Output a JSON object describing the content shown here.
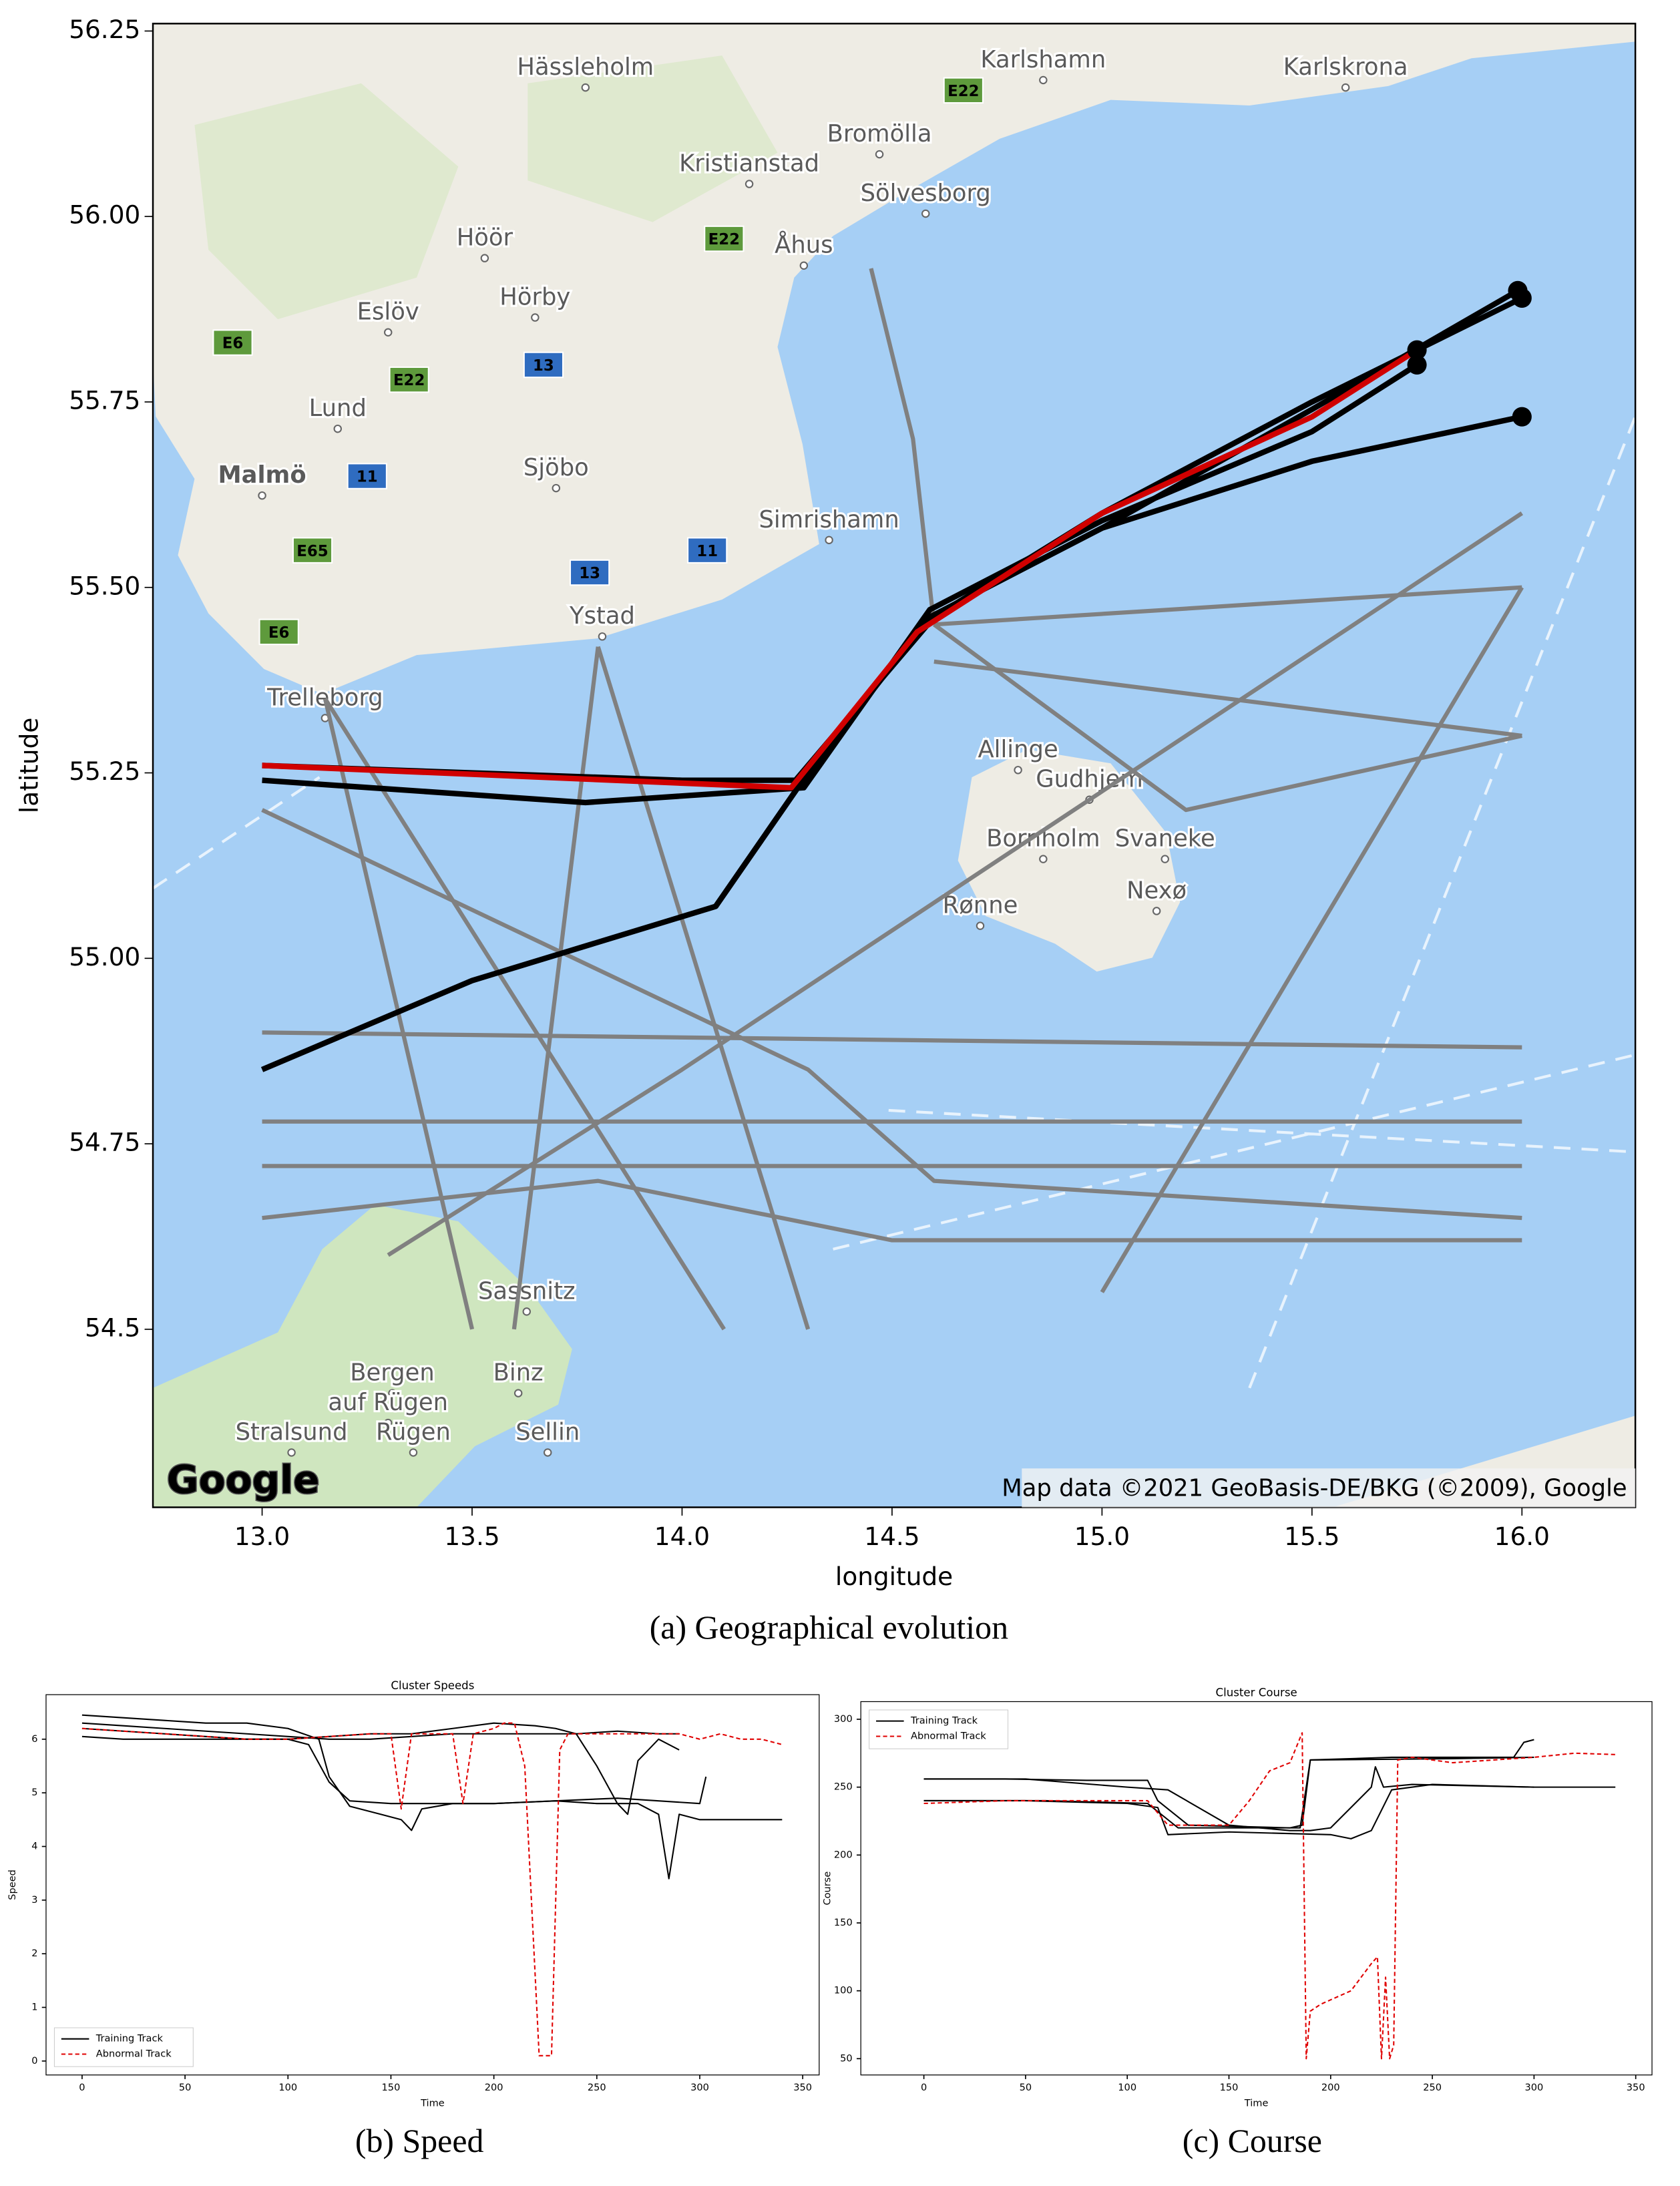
{
  "chart_data": [
    {
      "type": "map",
      "xlabel": "longitude",
      "ylabel": "latitude",
      "caption": "(a) Geographical evolution",
      "logo": "Google",
      "attribution": "Map data ©2021 GeoBasis-DE/BKG (©2009), Google",
      "xlim": [
        12.74,
        16.27
      ],
      "ylim": [
        54.26,
        56.26
      ],
      "xticks": [
        {
          "value": 13,
          "label": "13.0"
        },
        13.5,
        {
          "value": 14,
          "label": "14.0"
        },
        14.5,
        {
          "value": 15,
          "label": "15.0"
        },
        15.5,
        {
          "value": 16,
          "label": "16.0"
        }
      ],
      "yticks": [
        54.5,
        54.75,
        {
          "value": 55,
          "label": "55.00"
        },
        55.25,
        {
          "value": 55.5,
          "label": "55.50"
        },
        55.75,
        {
          "value": 56,
          "label": "56.00"
        },
        56.25
      ],
      "places": [
        {
          "name": "Hässleholm",
          "lon": 13.77,
          "lat": 56.2
        },
        {
          "name": "Karlshamn",
          "lon": 14.86,
          "lat": 56.21
        },
        {
          "name": "Karlskrona",
          "lon": 15.58,
          "lat": 56.2
        },
        {
          "name": "Bromölla",
          "lon": 14.47,
          "lat": 56.11
        },
        {
          "name": "Kristianstad",
          "lon": 14.16,
          "lat": 56.07
        },
        {
          "name": "Sölvesborg",
          "lon": 14.58,
          "lat": 56.03
        },
        {
          "name": "Höör",
          "lon": 13.53,
          "lat": 55.97
        },
        {
          "name": "Åhus",
          "lon": 14.29,
          "lat": 55.96
        },
        {
          "name": "Eslöv",
          "lon": 13.3,
          "lat": 55.87
        },
        {
          "name": "Hörby",
          "lon": 13.65,
          "lat": 55.89
        },
        {
          "name": "Lund",
          "lon": 13.18,
          "lat": 55.74
        },
        {
          "name": "Malmö",
          "lon": 13.0,
          "lat": 55.65
        },
        {
          "name": "Sjöbo",
          "lon": 13.7,
          "lat": 55.66
        },
        {
          "name": "Simrishamn",
          "lon": 14.35,
          "lat": 55.59
        },
        {
          "name": "Ystad",
          "lon": 13.81,
          "lat": 55.46
        },
        {
          "name": "Trelleborg",
          "lon": 13.15,
          "lat": 55.35
        },
        {
          "name": "Allinge",
          "lon": 14.8,
          "lat": 55.28
        },
        {
          "name": "Gudhjem",
          "lon": 14.97,
          "lat": 55.24
        },
        {
          "name": "Bornholm",
          "lon": 14.86,
          "lat": 55.16
        },
        {
          "name": "Svaneke",
          "lon": 15.15,
          "lat": 55.16
        },
        {
          "name": "Nexø",
          "lon": 15.13,
          "lat": 55.09
        },
        {
          "name": "Rønne",
          "lon": 14.71,
          "lat": 55.07
        },
        {
          "name": "Sassnitz",
          "lon": 13.63,
          "lat": 54.55
        },
        {
          "name": "Bergen",
          "lon": 13.31,
          "lat": 54.44
        },
        {
          "name": "auf Rügen",
          "lon": 13.3,
          "lat": 54.4
        },
        {
          "name": "Binz",
          "lon": 13.61,
          "lat": 54.44
        },
        {
          "name": "Sellin",
          "lon": 13.68,
          "lat": 54.36
        },
        {
          "name": "Stralsund",
          "lon": 13.07,
          "lat": 54.36
        },
        {
          "name": "Rügen",
          "lon": 13.36,
          "lat": 54.36
        }
      ],
      "roads": [
        {
          "label": "E22",
          "lon": 14.67,
          "lat": 56.17,
          "color": "#5e9a3c"
        },
        {
          "label": "E22",
          "lon": 14.1,
          "lat": 55.97,
          "color": "#5e9a3c"
        },
        {
          "label": "E22",
          "lon": 13.35,
          "lat": 55.78,
          "color": "#5e9a3c"
        },
        {
          "label": "E6",
          "lon": 12.93,
          "lat": 55.83,
          "color": "#5e9a3c"
        },
        {
          "label": "E65",
          "lon": 13.12,
          "lat": 55.55,
          "color": "#5e9a3c"
        },
        {
          "label": "E6",
          "lon": 13.04,
          "lat": 55.44,
          "color": "#5e9a3c"
        },
        {
          "label": "13",
          "lon": 13.67,
          "lat": 55.8,
          "color": "#2f6cc0"
        },
        {
          "label": "13",
          "lon": 13.78,
          "lat": 55.52,
          "color": "#2f6cc0"
        },
        {
          "label": "11",
          "lon": 13.25,
          "lat": 55.65,
          "color": "#2f6cc0"
        },
        {
          "label": "11",
          "lon": 14.06,
          "lat": 55.55,
          "color": "#2f6cc0"
        }
      ],
      "series": [
        {
          "color": "#808080",
          "x": [
            13.0,
            16.0
          ],
          "values": [
            54.78,
            54.78
          ]
        },
        {
          "color": "#808080",
          "x": [
            13.0,
            16.0
          ],
          "values": [
            54.72,
            54.72
          ]
        },
        {
          "color": "#808080",
          "x": [
            13.0,
            16.0
          ],
          "values": [
            54.9,
            54.88
          ]
        },
        {
          "color": "#808080",
          "x": [
            14.6,
            16.0
          ],
          "values": [
            55.45,
            55.5
          ]
        },
        {
          "color": "#808080",
          "x": [
            14.6,
            16.0
          ],
          "values": [
            55.4,
            55.3
          ]
        },
        {
          "color": "#808080",
          "x": [
            13.0,
            13.8,
            14.5,
            16.0
          ],
          "values": [
            54.65,
            54.7,
            54.62,
            54.62
          ]
        },
        {
          "color": "#808080",
          "x": [
            13.15,
            14.1
          ],
          "values": [
            55.35,
            54.5
          ]
        },
        {
          "color": "#808080",
          "x": [
            13.15,
            13.5
          ],
          "values": [
            55.35,
            54.5
          ]
        },
        {
          "color": "#808080",
          "x": [
            13.8,
            13.6
          ],
          "values": [
            55.42,
            54.5
          ]
        },
        {
          "color": "#808080",
          "x": [
            13.8,
            14.3
          ],
          "values": [
            55.42,
            54.5
          ]
        },
        {
          "color": "#808080",
          "x": [
            13.0,
            14.3,
            14.6,
            16.0
          ],
          "values": [
            55.2,
            54.85,
            54.7,
            54.65
          ]
        },
        {
          "color": "#808080",
          "x": [
            15.0,
            16.0
          ],
          "values": [
            54.55,
            55.5
          ]
        },
        {
          "color": "#808080",
          "x": [
            14.45,
            14.55,
            14.6
          ],
          "values": [
            55.93,
            55.7,
            55.45
          ]
        },
        {
          "color": "#808080",
          "x": [
            13.3,
            14.0,
            16.0
          ],
          "values": [
            54.6,
            54.85,
            55.6
          ]
        },
        {
          "color": "#808080",
          "x": [
            14.6,
            15.2,
            16.0
          ],
          "values": [
            55.45,
            55.2,
            55.3
          ]
        },
        {
          "color": "#000000",
          "x": [
            13.0,
            13.5,
            14.08,
            14.3,
            14.59,
            15.0,
            15.5,
            15.99
          ],
          "values": [
            54.85,
            54.97,
            55.07,
            55.25,
            55.46,
            55.58,
            55.74,
            55.9
          ],
          "end_marker": true
        },
        {
          "color": "#000000",
          "x": [
            13.0,
            13.77,
            14.29,
            14.59,
            15.0,
            15.5,
            15.75
          ],
          "values": [
            55.24,
            55.21,
            55.23,
            55.47,
            55.59,
            55.71,
            55.8
          ],
          "end_marker": true
        },
        {
          "color": "#000000",
          "x": [
            14.08,
            14.3,
            14.59,
            15.0,
            15.5,
            16.0
          ],
          "values": [
            55.07,
            55.25,
            55.46,
            55.58,
            55.67,
            55.73
          ],
          "end_marker": true
        },
        {
          "color": "#000000",
          "x": [
            13.0,
            14.0,
            14.27,
            14.6,
            15.0,
            15.5,
            16.0
          ],
          "values": [
            55.26,
            55.24,
            55.24,
            55.46,
            55.6,
            55.75,
            55.89
          ],
          "end_marker": true
        },
        {
          "color": "#d00000",
          "x": [
            13.0,
            14.26,
            14.56,
            15.0,
            15.5,
            15.75
          ],
          "values": [
            55.26,
            55.23,
            55.44,
            55.6,
            55.73,
            55.82
          ],
          "end_marker": true
        }
      ]
    },
    {
      "type": "line",
      "title": "Cluster Speeds",
      "xlabel": "Time",
      "ylabel": "Speed",
      "caption": "(b) Speed",
      "xlim": [
        -17.5,
        358
      ],
      "ylim": [
        -0.26,
        6.83
      ],
      "xticks": [
        0,
        50,
        100,
        150,
        200,
        250,
        300,
        350
      ],
      "yticks": [
        0,
        1,
        2,
        3,
        4,
        5,
        6
      ],
      "legend": "lower left",
      "series": [
        {
          "name": "Training Track",
          "color": "#000000",
          "linestyle": "solid",
          "x": [
            0,
            20,
            40,
            60,
            80,
            100,
            120,
            140,
            160,
            180,
            200,
            220,
            240,
            260,
            280,
            290
          ],
          "values": [
            6.3,
            6.25,
            6.2,
            6.15,
            6.1,
            6.05,
            6.0,
            6.0,
            6.05,
            6.1,
            6.1,
            6.1,
            6.1,
            6.15,
            6.1,
            6.1
          ]
        },
        {
          "color": "#000000",
          "linestyle": "solid",
          "x": [
            0,
            20,
            40,
            60,
            80,
            100,
            110,
            120,
            130,
            150,
            170,
            200,
            230,
            250,
            270,
            280,
            285,
            290,
            300,
            320,
            340
          ],
          "values": [
            6.2,
            6.15,
            6.1,
            6.05,
            6.0,
            6.0,
            5.9,
            5.2,
            4.85,
            4.8,
            4.8,
            4.8,
            4.85,
            4.8,
            4.8,
            4.6,
            3.4,
            4.6,
            4.5,
            4.5,
            4.5
          ]
        },
        {
          "color": "#000000",
          "linestyle": "solid",
          "x": [
            0,
            20,
            40,
            60,
            80,
            100,
            115,
            120,
            130,
            145,
            155,
            160,
            165,
            180,
            200,
            230,
            260,
            300,
            303
          ],
          "values": [
            6.45,
            6.4,
            6.35,
            6.3,
            6.3,
            6.2,
            6.0,
            5.3,
            4.75,
            4.6,
            4.5,
            4.3,
            4.7,
            4.8,
            4.8,
            4.85,
            4.9,
            4.8,
            5.3
          ]
        },
        {
          "color": "#000000",
          "linestyle": "solid",
          "x": [
            0,
            20,
            40,
            60,
            80,
            100,
            120,
            140,
            160,
            180,
            200,
            220,
            230,
            240,
            250,
            260,
            265,
            270,
            280,
            290
          ],
          "values": [
            6.05,
            6.0,
            6.0,
            6.0,
            6.0,
            6.0,
            6.05,
            6.1,
            6.1,
            6.2,
            6.3,
            6.25,
            6.2,
            6.1,
            5.5,
            4.8,
            4.6,
            5.6,
            6.0,
            5.8
          ]
        },
        {
          "name": "Abnormal Track",
          "color": "#e00000",
          "linestyle": "dashed",
          "x": [
            0,
            20,
            40,
            60,
            80,
            100,
            120,
            140,
            150,
            155,
            160,
            170,
            180,
            185,
            190,
            200,
            205,
            210,
            215,
            222,
            228,
            232,
            236,
            250,
            270,
            290,
            300,
            310,
            320,
            330,
            340
          ],
          "values": [
            6.2,
            6.15,
            6.1,
            6.05,
            6.0,
            6.0,
            6.05,
            6.1,
            6.1,
            4.7,
            6.1,
            6.1,
            6.1,
            4.8,
            6.1,
            6.2,
            6.3,
            6.3,
            5.5,
            0.1,
            0.1,
            5.8,
            6.1,
            6.1,
            6.1,
            6.1,
            6.0,
            6.1,
            6.0,
            6.0,
            5.9
          ]
        }
      ]
    },
    {
      "type": "line",
      "title": "Cluster Course",
      "xlabel": "Time",
      "ylabel": "Course",
      "caption": "(c) Course",
      "xlim": [
        -31,
        358
      ],
      "ylim": [
        38,
        313
      ],
      "xticks": [
        0,
        50,
        100,
        150,
        200,
        250,
        300,
        350
      ],
      "yticks": [
        50,
        100,
        150,
        200,
        250,
        300
      ],
      "legend": "upper left",
      "series": [
        {
          "name": "Training Track",
          "color": "#000000",
          "linestyle": "solid",
          "x": [
            0,
            40,
            80,
            110,
            115,
            130,
            180,
            186,
            190,
            230,
            260,
            290,
            295,
            300
          ],
          "values": [
            256,
            256,
            255,
            255,
            240,
            222,
            220,
            222,
            270,
            272,
            272,
            272,
            283,
            285
          ]
        },
        {
          "color": "#000000",
          "linestyle": "solid",
          "x": [
            0,
            50,
            100,
            115,
            120,
            150,
            200,
            210,
            220,
            230,
            250,
            300,
            340
          ],
          "values": [
            240,
            240,
            238,
            235,
            215,
            217,
            215,
            212,
            218,
            248,
            252,
            250,
            250
          ]
        },
        {
          "color": "#000000",
          "linestyle": "solid",
          "x": [
            0,
            50,
            100,
            120,
            150,
            180,
            190,
            200,
            220,
            222,
            226,
            240,
            300
          ],
          "values": [
            256,
            256,
            250,
            248,
            222,
            218,
            218,
            220,
            250,
            265,
            250,
            252,
            250
          ]
        },
        {
          "color": "#000000",
          "linestyle": "solid",
          "x": [
            0,
            60,
            110,
            125,
            150,
            185,
            190,
            260,
            300
          ],
          "values": [
            240,
            240,
            238,
            220,
            220,
            220,
            270,
            271,
            272
          ]
        },
        {
          "name": "Abnormal Track",
          "color": "#e00000",
          "linestyle": "dashed",
          "x": [
            0,
            40,
            80,
            110,
            120,
            150,
            160,
            170,
            180,
            186,
            188,
            190,
            195,
            210,
            220,
            223,
            225,
            227,
            229,
            231,
            233,
            240,
            260,
            280,
            300,
            320,
            340
          ],
          "values": [
            238,
            240,
            240,
            240,
            222,
            222,
            240,
            262,
            268,
            290,
            50,
            85,
            90,
            100,
            120,
            125,
            50,
            110,
            50,
            60,
            270,
            272,
            268,
            270,
            272,
            275,
            274
          ]
        }
      ]
    }
  ]
}
